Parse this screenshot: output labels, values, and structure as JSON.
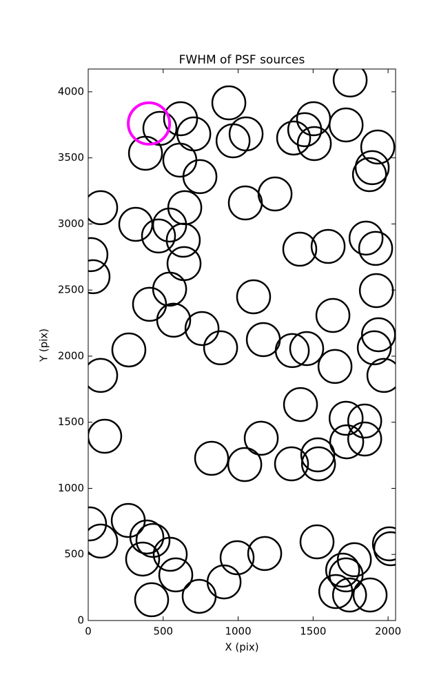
{
  "chart_data": {
    "type": "scatter",
    "title": "FWHM of PSF sources",
    "xlabel": "X (pix)",
    "ylabel": "Y (pix)",
    "xlim": [
      0,
      2050
    ],
    "ylim": [
      0,
      4172
    ],
    "xticks": [
      0,
      500,
      1000,
      1500,
      2000
    ],
    "yticks": [
      0,
      500,
      1000,
      1500,
      2000,
      2500,
      3000,
      3500,
      4000
    ],
    "grid": false,
    "series": [
      {
        "color": "#000000",
        "x": [
          1747,
          938,
          616,
          704,
          478,
          382,
          611,
          745,
          966,
          1053,
          1503,
          1444,
          1370,
          1508,
          1720,
          1931,
          1894,
          1876,
          1246,
          1048,
          83,
          644,
          317,
          543,
          469,
          634,
          18,
          32,
          639,
          543,
          409,
          570,
          759,
          1103,
          1411,
          1600,
          1853,
          1917,
          1922,
          1632,
          1936,
          1908,
          1972,
          1646,
          1457,
          1361,
          1168,
          883,
          271,
          83,
          1416,
          1720,
          1844,
          1724,
          1844,
          110,
          1154,
          1531,
          1536,
          1356,
          823,
          1044,
          9,
          83,
          267,
          391,
          432,
          363,
          547,
          584,
          423,
          740,
          906,
          993,
          1177,
          1526,
          1775,
          1697,
          1720,
          1651,
          1743,
          1880,
          2009,
          2018
        ],
        "y": [
          4089,
          3916,
          3796,
          3681,
          3723,
          3535,
          3483,
          3358,
          3629,
          3681,
          3796,
          3713,
          3650,
          3608,
          3749,
          3582,
          3426,
          3373,
          3227,
          3159,
          3123,
          3123,
          2997,
          2992,
          2909,
          2877,
          2768,
          2601,
          2700,
          2507,
          2392,
          2272,
          2209,
          2449,
          2809,
          2830,
          2893,
          2815,
          2496,
          2308,
          2162,
          2063,
          1854,
          1922,
          2057,
          2042,
          2125,
          2063,
          2047,
          1854,
          1634,
          1530,
          1509,
          1352,
          1373,
          1394,
          1379,
          1253,
          1185,
          1185,
          1227,
          1180,
          731,
          601,
          757,
          632,
          606,
          465,
          501,
          345,
          157,
          183,
          292,
          475,
          507,
          595,
          460,
          381,
          345,
          219,
          193,
          193,
          580,
          543
        ]
      },
      {
        "color": "#ff00ff",
        "x": [
          405
        ],
        "y": [
          3760
        ]
      }
    ]
  }
}
